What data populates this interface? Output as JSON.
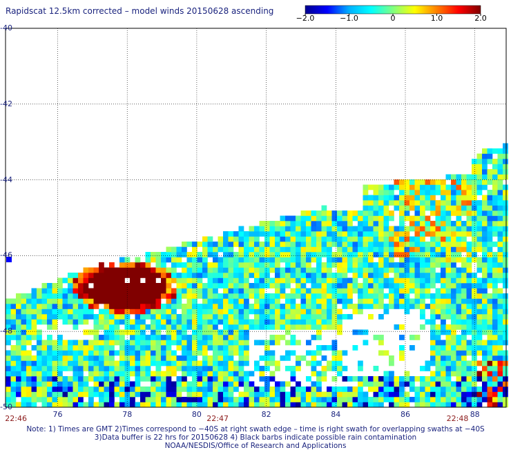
{
  "title": "Rapidscat 12.5km corrected – model winds 20150628 ascending",
  "colorbar": {
    "range": [
      -2.0,
      2.0
    ],
    "tick_labels": [
      "−2.0",
      "−1.0",
      "0",
      "1.0",
      "2.0"
    ],
    "tick_values": [
      -2.0,
      -1.0,
      0,
      1.0,
      2.0
    ],
    "colors": [
      "#00008f",
      "#0000ff",
      "#00b0ff",
      "#00ffff",
      "#80ff80",
      "#ffff00",
      "#ff8000",
      "#ff0000",
      "#800000"
    ]
  },
  "map": {
    "lat_range": [
      -50,
      -40
    ],
    "lon_range": [
      74.5,
      88.9
    ],
    "lat_labels": [
      "-40",
      "-42",
      "-44",
      "-46",
      "-48",
      "-50"
    ],
    "lat_values": [
      -40,
      -42,
      -44,
      -46,
      -48,
      -50
    ],
    "lon_labels": [
      "76",
      "78",
      "80",
      "82",
      "84",
      "86",
      "88"
    ],
    "lon_values": [
      76,
      78,
      80,
      82,
      84,
      86,
      88
    ],
    "grid": "dotted",
    "pass_times": [
      {
        "label": "22:46",
        "lon": 74.8
      },
      {
        "label": "22:47",
        "lon": 80.6
      },
      {
        "label": "22:48",
        "lon": 87.5
      }
    ],
    "rain_contamination_marks": "black barbs",
    "swath_data_summary": "wind speed difference field, mostly −2 to 0 with strong positive patch near 78.5E 47.2S"
  },
  "notes": [
    "Note: 1) Times are GMT 2)Times correspond to −40S at right swath edge – time is right swath for overlapping swaths at −40S",
    "3)Data buffer is 22 hrs for 20150628 4) Black barbs indicate possible rain contamination",
    "NOAA/NESDIS/Office of Research and Applications"
  ]
}
